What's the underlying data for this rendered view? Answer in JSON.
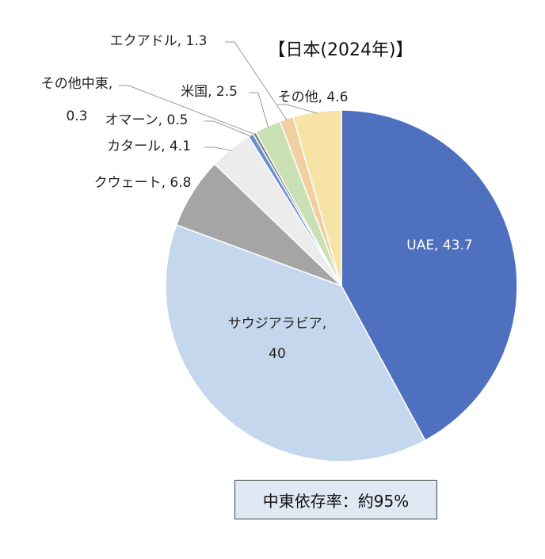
{
  "chart_data": {
    "type": "pie",
    "title": "【日本(2024年)】",
    "slices": [
      {
        "name": "UAE",
        "value": 43.7,
        "label": "UAE, 43.7",
        "color": "#4f6fbf"
      },
      {
        "name": "サウジアラビア",
        "value": 40,
        "label": "サウジアラビア,|40",
        "color": "#c5d7ec"
      },
      {
        "name": "クウェート",
        "value": 6.8,
        "label": "クウェート, 6.8",
        "color": "#a5a5a5"
      },
      {
        "name": "カタール",
        "value": 4.1,
        "label": "カタール, 4.1",
        "color": "#ececec"
      },
      {
        "name": "オマーン",
        "value": 0.5,
        "label": "オマーン, 0.5",
        "color": "#6a90d0"
      },
      {
        "name": "その他中東",
        "value": 0.3,
        "label": "その他中東,|0.3",
        "color": "#7a7a7a"
      },
      {
        "name": "米国",
        "value": 2.5,
        "label": "米国, 2.5",
        "color": "#c9e0b4"
      },
      {
        "name": "エクアドル",
        "value": 1.3,
        "label": "エクアドル, 1.3",
        "color": "#f1cfa0"
      },
      {
        "name": "その他",
        "value": 4.6,
        "label": "その他, 4.6",
        "color": "#f8e3a6"
      }
    ]
  },
  "callout": {
    "text": "中東依存率：約95%"
  }
}
